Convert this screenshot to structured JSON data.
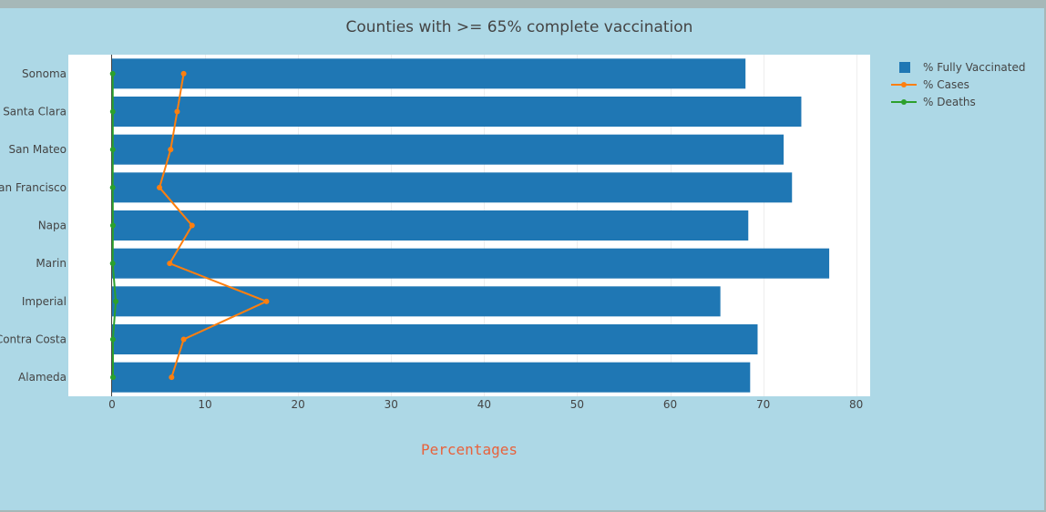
{
  "chart_data": {
    "type": "bar",
    "orientation": "horizontal",
    "title": "Counties with >= 65% complete vaccination",
    "xlabel": "Percentages",
    "ylabel": "",
    "categories": [
      "Sonoma",
      "Santa Clara",
      "San Mateo",
      "San Francisco",
      "Napa",
      "Marin",
      "Imperial",
      "Contra Costa",
      "Alameda"
    ],
    "xlim": [
      -4.7,
      81.5
    ],
    "xticks": [
      0,
      10,
      20,
      30,
      40,
      50,
      60,
      70,
      80
    ],
    "grid": true,
    "legend_position": "top-right",
    "series": [
      {
        "name": "% Fully Vaccinated",
        "kind": "bar",
        "color": "#1f77b4",
        "values": [
          68.1,
          74.1,
          72.2,
          73.1,
          68.4,
          77.1,
          65.4,
          69.4,
          68.6
        ]
      },
      {
        "name": "% Cases",
        "kind": "line",
        "color": "#ff7f0e",
        "values": [
          7.7,
          7.0,
          6.3,
          5.1,
          8.6,
          6.2,
          16.6,
          7.7,
          6.4
        ]
      },
      {
        "name": "% Deaths",
        "kind": "line",
        "color": "#2ca02c",
        "values": [
          0.07,
          0.08,
          0.08,
          0.07,
          0.09,
          0.07,
          0.4,
          0.09,
          0.1
        ]
      }
    ]
  }
}
